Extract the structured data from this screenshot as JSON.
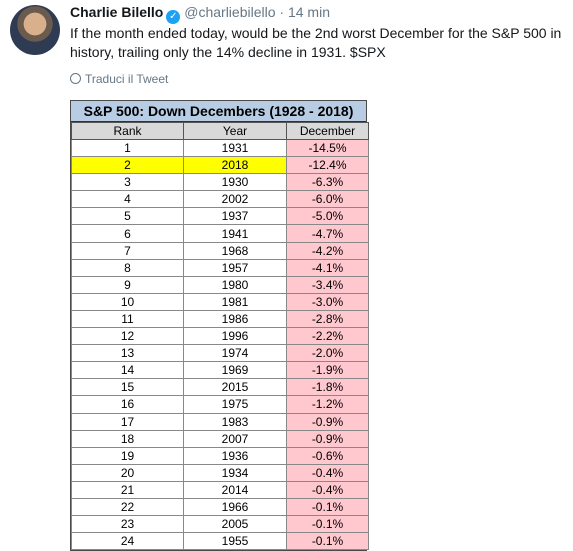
{
  "tweet": {
    "name": "Charlie Bilello",
    "verified_badge": "✓",
    "handle": "@charliebilello",
    "dot": "·",
    "time": "14 min",
    "text": "If the month ended today, would be the 2nd worst December for the S&P 500 in history, trailing only the 14% decline in 1931. $SPX",
    "translate_label": "Traduci il Tweet"
  },
  "table": {
    "title": "S&P 500: Down Decembers (1928 - 2018)",
    "headers": [
      "Rank",
      "Year",
      "December"
    ],
    "rows": [
      {
        "rank": "1",
        "year": "1931",
        "december": "-14.5%"
      },
      {
        "rank": "2",
        "year": "2018",
        "december": "-12.4%"
      },
      {
        "rank": "3",
        "year": "1930",
        "december": "-6.3%"
      },
      {
        "rank": "4",
        "year": "2002",
        "december": "-6.0%"
      },
      {
        "rank": "5",
        "year": "1937",
        "december": "-5.0%"
      },
      {
        "rank": "6",
        "year": "1941",
        "december": "-4.7%"
      },
      {
        "rank": "7",
        "year": "1968",
        "december": "-4.2%"
      },
      {
        "rank": "8",
        "year": "1957",
        "december": "-4.1%"
      },
      {
        "rank": "9",
        "year": "1980",
        "december": "-3.4%"
      },
      {
        "rank": "10",
        "year": "1981",
        "december": "-3.0%"
      },
      {
        "rank": "11",
        "year": "1986",
        "december": "-2.8%"
      },
      {
        "rank": "12",
        "year": "1996",
        "december": "-2.2%"
      },
      {
        "rank": "13",
        "year": "1974",
        "december": "-2.0%"
      },
      {
        "rank": "14",
        "year": "1969",
        "december": "-1.9%"
      },
      {
        "rank": "15",
        "year": "2015",
        "december": "-1.8%"
      },
      {
        "rank": "16",
        "year": "1975",
        "december": "-1.2%"
      },
      {
        "rank": "17",
        "year": "1983",
        "december": "-0.9%"
      },
      {
        "rank": "18",
        "year": "2007",
        "december": "-0.9%"
      },
      {
        "rank": "19",
        "year": "1936",
        "december": "-0.6%"
      },
      {
        "rank": "20",
        "year": "1934",
        "december": "-0.4%"
      },
      {
        "rank": "21",
        "year": "2014",
        "december": "-0.4%"
      },
      {
        "rank": "22",
        "year": "1966",
        "december": "-0.1%"
      },
      {
        "rank": "23",
        "year": "2005",
        "december": "-0.1%"
      },
      {
        "rank": "24",
        "year": "1955",
        "december": "-0.1%"
      }
    ],
    "highlighted_rank": "2"
  },
  "colors": {
    "title_bg": "#b8cce4",
    "header_bg": "#d9d9d9",
    "negative_cell_bg": "#ffc7ce",
    "highlight_bg": "#ffff00",
    "verified_blue": "#1da1f2"
  }
}
